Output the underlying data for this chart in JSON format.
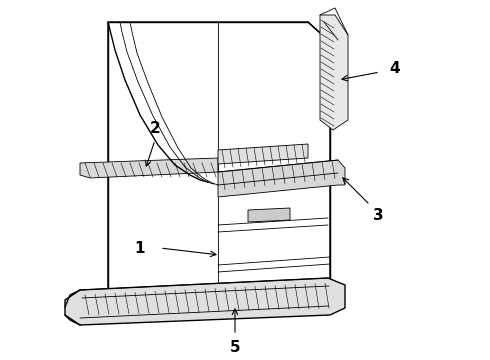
{
  "background_color": "#ffffff",
  "line_color": "#000000",
  "lw_main": 1.0,
  "lw_thin": 0.6,
  "hatch_lw": 0.4
}
